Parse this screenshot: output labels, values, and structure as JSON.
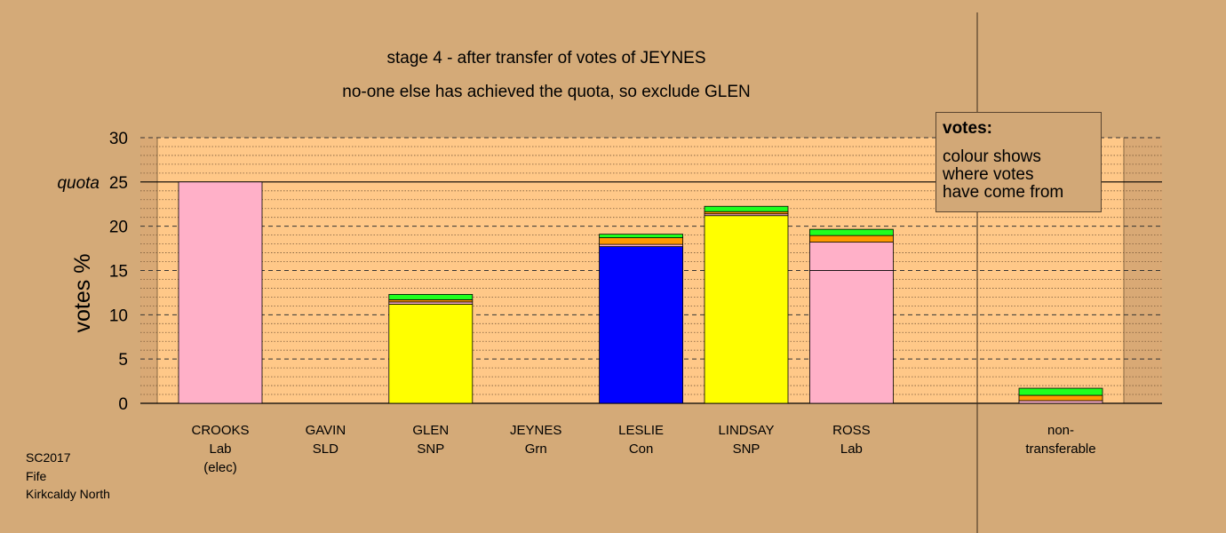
{
  "chart_data": {
    "type": "bar",
    "title": "stage 4 - after transfer of votes of JEYNES",
    "subtitle": "no-one else has achieved the quota, so exclude GLEN",
    "ylabel": "votes %",
    "ylim": [
      0,
      30
    ],
    "yticks": [
      0,
      5,
      10,
      15,
      20,
      25,
      30
    ],
    "quota": 25,
    "quota_label": "quota",
    "grid": true,
    "candidates": [
      {
        "name": "CROOKS",
        "party": "Lab",
        "note": "(elec)",
        "segments": [
          {
            "color": "#ffb0c8",
            "value": 25.0
          }
        ]
      },
      {
        "name": "GAVIN",
        "party": "SLD",
        "note": "",
        "segments": []
      },
      {
        "name": "GLEN",
        "party": "SNP",
        "note": "",
        "segments": [
          {
            "color": "#ffff00",
            "value": 11.2
          },
          {
            "color": "#ffb0c8",
            "value": 0.25
          },
          {
            "color": "#ff9900",
            "value": 0.25
          },
          {
            "color": "#1eff1e",
            "value": 0.6
          }
        ]
      },
      {
        "name": "JEYNES",
        "party": "Grn",
        "note": "",
        "segments": []
      },
      {
        "name": "LESLIE",
        "party": "Con",
        "note": "",
        "segments": [
          {
            "color": "#0000ff",
            "value": 17.7
          },
          {
            "color": "#ffb0c8",
            "value": 0.25
          },
          {
            "color": "#ff9900",
            "value": 0.75
          },
          {
            "color": "#1eff1e",
            "value": 0.4
          }
        ]
      },
      {
        "name": "LINDSAY",
        "party": "SNP",
        "note": "",
        "segments": [
          {
            "color": "#ffff00",
            "value": 21.2
          },
          {
            "color": "#ffb0c8",
            "value": 0.2
          },
          {
            "color": "#ff9900",
            "value": 0.25
          },
          {
            "color": "#1eff1e",
            "value": 0.6
          }
        ]
      },
      {
        "name": "ROSS",
        "party": "Lab",
        "note": "",
        "segments": [
          {
            "color": "#ffb0c8",
            "value": 15.0
          },
          {
            "color": "#ffb0c8",
            "value": 3.2
          },
          {
            "color": "#ff9900",
            "value": 0.75
          },
          {
            "color": "#1eff1e",
            "value": 0.7
          }
        ]
      }
    ],
    "nontransferable": {
      "label_line1": "non-",
      "label_line2": "transferable",
      "segments": [
        {
          "color": "#ffb0c8",
          "value": 0.3
        },
        {
          "color": "#ff9900",
          "value": 0.6
        },
        {
          "color": "#1eff1e",
          "value": 0.8
        }
      ]
    }
  },
  "legend": {
    "heading": "votes:",
    "body": "colour shows\nwhere votes\nhave come from"
  },
  "footer": {
    "line1": "SC2017",
    "line2": "Fife",
    "line3": "Kirkcaldy North"
  },
  "colors": {
    "background": "#d4aa78",
    "plot_area": "#ffc888",
    "side_area": "#d9a975"
  }
}
